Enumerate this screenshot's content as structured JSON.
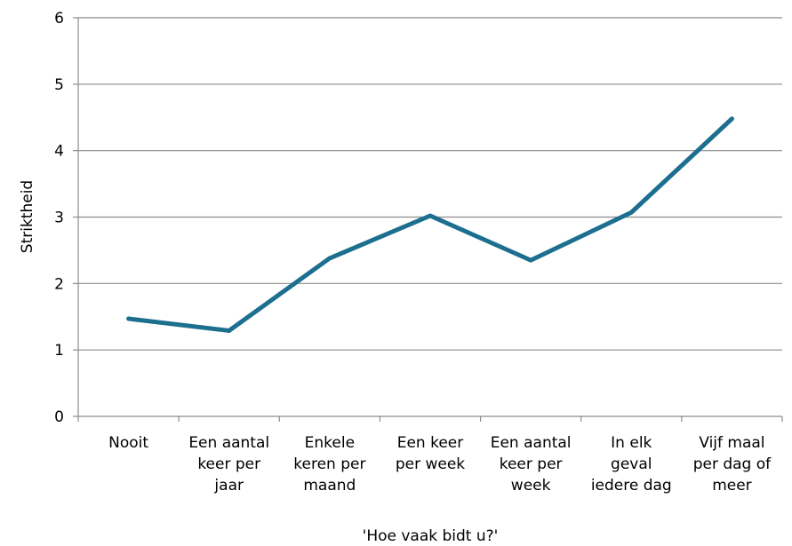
{
  "chart_data": {
    "type": "line",
    "categories": [
      "Nooit",
      "Een aantal keer per jaar",
      "Enkele keren per maand",
      "Een keer per week",
      "Een aantal keer per week",
      "In elk geval iedere dag",
      "Vijf maal per dag of meer"
    ],
    "series": [
      {
        "name": "Striktheid",
        "color": "#1c6f8f",
        "values": [
          1.47,
          1.29,
          2.38,
          3.02,
          2.35,
          3.07,
          4.48
        ]
      }
    ],
    "ylabel": "Striktheid",
    "xlabel": "'Hoe vaak bidt u?'",
    "ylim": [
      0,
      6
    ],
    "yticks": [
      0,
      1,
      2,
      3,
      4,
      5,
      6
    ],
    "grid": true
  }
}
